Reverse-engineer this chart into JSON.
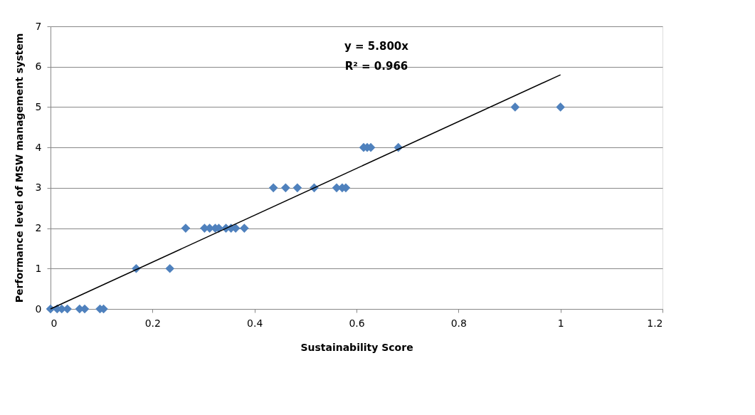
{
  "chart_data": {
    "type": "scatter",
    "xlabel": "Sustainability Score",
    "ylabel": "Performance level of MSW management system",
    "annotations": [
      "y = 5.800x",
      "R² = 0.966"
    ],
    "xlim": [
      0,
      1.2
    ],
    "xticks": [
      0,
      0.2,
      0.4,
      0.6,
      0.8,
      1,
      1.2
    ],
    "ylim": [
      0,
      7
    ],
    "yticks": [
      0,
      1,
      2,
      3,
      4,
      5,
      6,
      7
    ],
    "grid": "y",
    "marker": "diamond",
    "series": [
      {
        "color": "#4f81bd",
        "x": [
          0,
          0.013,
          0.022,
          0.033,
          0.057,
          0.067,
          0.097,
          0.104,
          0.168,
          0.234,
          0.265,
          0.302,
          0.312,
          0.323,
          0.33,
          0.344,
          0.354,
          0.363,
          0.38,
          0.437,
          0.461,
          0.484,
          0.517,
          0.561,
          0.572,
          0.579,
          0.614,
          0.621,
          0.628,
          0.682,
          0.911,
          1.0
        ],
        "values": [
          0,
          0,
          0,
          0,
          0,
          0,
          0,
          0,
          1,
          1,
          2,
          2,
          2,
          2,
          2,
          2,
          2,
          2,
          2,
          3,
          3,
          3,
          3,
          3,
          3,
          3,
          4,
          4,
          4,
          4,
          5,
          5
        ]
      },
      {
        "type": "line",
        "color": "#000000",
        "line_style": "solid",
        "marker": "none",
        "x": [
          0,
          1
        ],
        "values": [
          0,
          5.8
        ]
      }
    ]
  }
}
